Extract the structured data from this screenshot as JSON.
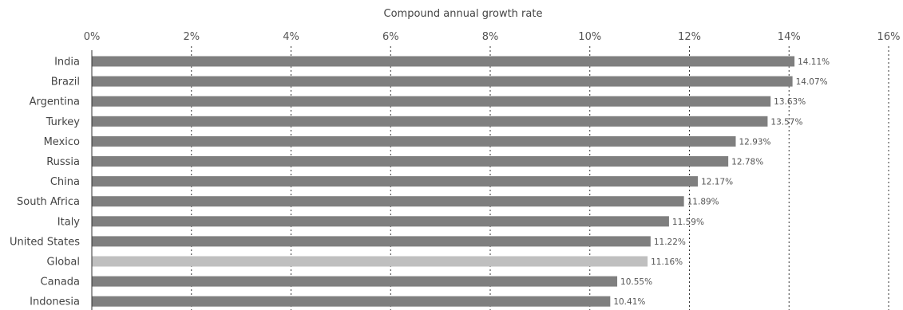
{
  "chart_data": {
    "type": "bar",
    "orientation": "horizontal",
    "title": "",
    "xlabel": "Compound annual growth rate",
    "ylabel": "",
    "xlim": [
      0,
      16
    ],
    "x_ticks": [
      "0%",
      "2%",
      "4%",
      "6%",
      "8%",
      "10%",
      "12%",
      "14%",
      "16%"
    ],
    "categories": [
      "India",
      "Brazil",
      "Argentina",
      "Turkey",
      "Mexico",
      "Russia",
      "China",
      "South Africa",
      "Italy",
      "United States",
      "Global",
      "Canada",
      "Indonesia"
    ],
    "values": [
      14.11,
      14.07,
      13.63,
      13.57,
      12.93,
      12.78,
      12.17,
      11.89,
      11.59,
      11.22,
      11.16,
      10.55,
      10.41
    ],
    "value_labels": [
      "14.11%",
      "14.07%",
      "13.63%",
      "13.57%",
      "12.93%",
      "12.78%",
      "12.17%",
      "11.89%",
      "11.59%",
      "11.22%",
      "11.16%",
      "10.55%",
      "10.41%"
    ],
    "highlight_category": "Global",
    "grid": true,
    "legend": "none",
    "colors": {
      "bar": "#7f7f7f",
      "highlight": "#bfbfbf"
    }
  }
}
